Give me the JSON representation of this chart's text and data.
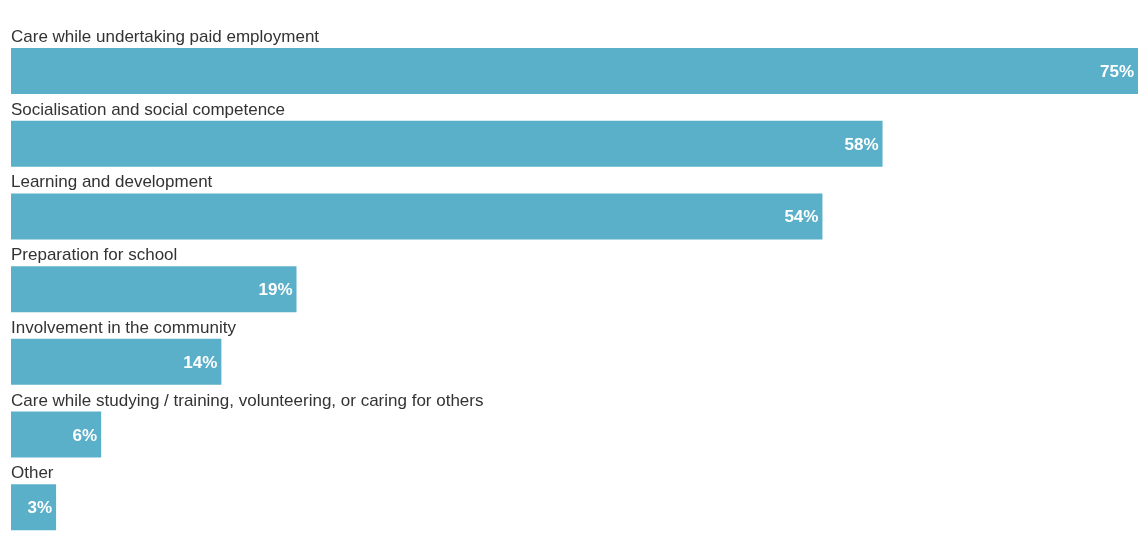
{
  "chart_data": {
    "type": "bar",
    "orientation": "horizontal",
    "categories": [
      "Care while undertaking paid employment",
      "Socialisation and social competence",
      "Learning and development",
      "Preparation for school",
      "Involvement in the community",
      "Care while studying / training, volunteering, or caring for others",
      "Other"
    ],
    "values": [
      75,
      58,
      54,
      19,
      14,
      6,
      3
    ],
    "value_labels": [
      "75%",
      "58%",
      "54%",
      "19%",
      "14%",
      "6%",
      "3%"
    ],
    "color": "#5aafc9"
  }
}
